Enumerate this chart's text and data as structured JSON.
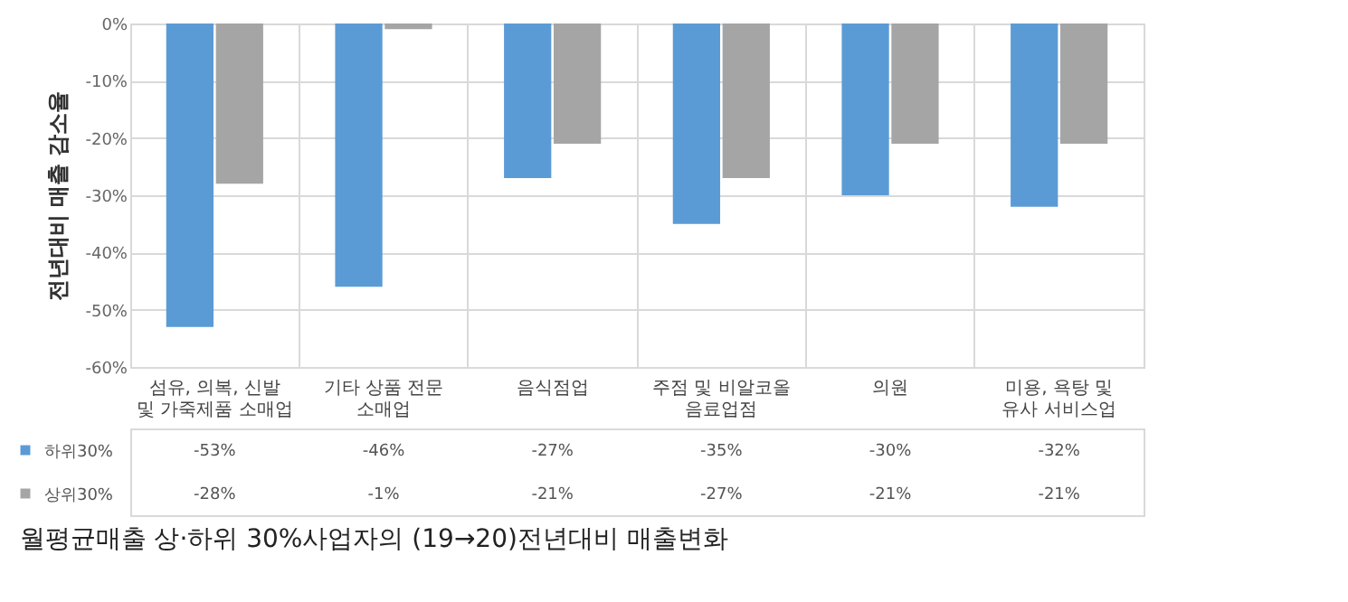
{
  "chart_data": {
    "type": "bar",
    "title": "월평균매출 상·하위 30%사업자의 (19→20)전년대비 매출변화",
    "ylabel": "전년대비 매출 감소율",
    "categories": [
      "섬유, 의복, 신발 및 가죽제품 소매업",
      "기타 상품 전문 소매업",
      "음식점업",
      "주점 및 비알코올 음료업점",
      "의원",
      "미용, 욕탕 및 유사 서비스업"
    ],
    "series": [
      {
        "name": "하위30%",
        "color": "#5b9bd5",
        "values": [
          -53,
          -46,
          -27,
          -35,
          -30,
          -32
        ],
        "value_labels": [
          "-53%",
          "-46%",
          "-27%",
          "-35%",
          "-30%",
          "-32%"
        ]
      },
      {
        "name": "상위30%",
        "color": "#a5a5a5",
        "values": [
          -28,
          -1,
          -21,
          -27,
          -21,
          -21
        ],
        "value_labels": [
          "-28%",
          "-1%",
          "-21%",
          "-27%",
          "-21%",
          "-21%"
        ]
      }
    ],
    "ylim": [
      -60,
      0
    ],
    "yticks": [
      {
        "value": 0,
        "label": "0%"
      },
      {
        "value": -10,
        "label": "-10%"
      },
      {
        "value": -20,
        "label": "-20%"
      },
      {
        "value": -30,
        "label": "-30%"
      },
      {
        "value": -40,
        "label": "-40%"
      },
      {
        "value": -50,
        "label": "-50%"
      },
      {
        "value": -60,
        "label": "-60%"
      }
    ],
    "grid": true,
    "legend": "left"
  }
}
